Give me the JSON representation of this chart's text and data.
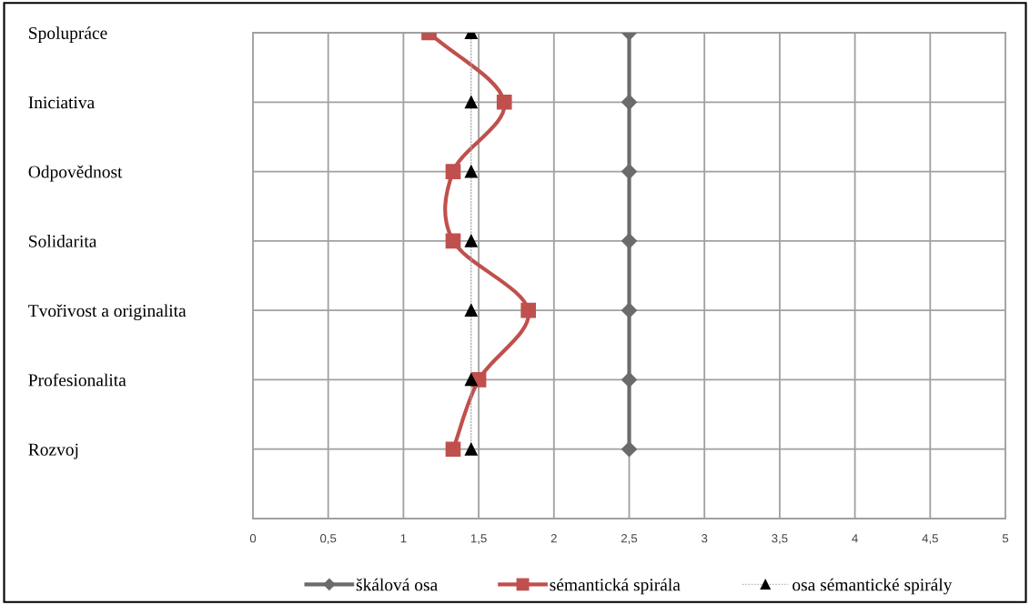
{
  "chart_data": {
    "type": "line",
    "orientation": "horizontal",
    "categories": [
      "Spolupráce",
      "Iniciativa",
      "Odpovědnost",
      "Solidarita",
      "Tvořivost a originalita",
      "Profesionalita",
      "Rozvoj"
    ],
    "series": [
      {
        "name": "škálová osa",
        "color": "#6b6b6b",
        "marker": "diamond",
        "line_style": "solid",
        "values": [
          2.5,
          2.5,
          2.5,
          2.5,
          2.5,
          2.5,
          2.5
        ]
      },
      {
        "name": "sémantická spirála",
        "color": "#c0504d",
        "marker": "square",
        "line_style": "solid",
        "values": [
          1.17,
          1.67,
          1.33,
          1.33,
          1.83,
          1.5,
          1.33
        ]
      },
      {
        "name": "osa sémantické spirály",
        "color": "#000000",
        "marker": "triangle",
        "line_style": "dotted",
        "values": [
          1.45,
          1.45,
          1.45,
          1.45,
          1.45,
          1.45,
          1.45
        ]
      }
    ],
    "xlim": [
      0,
      5
    ],
    "xticks": [
      0,
      {
        "value": 0.5,
        "label": "0,5"
      },
      1,
      {
        "value": 1.5,
        "label": "1,5"
      },
      2,
      {
        "value": 2.5,
        "label": "2,5"
      },
      3,
      {
        "value": 3.5,
        "label": "3,5"
      },
      4,
      {
        "value": 4.5,
        "label": "4,5"
      },
      5
    ],
    "grid": true,
    "legend": "bottom"
  }
}
